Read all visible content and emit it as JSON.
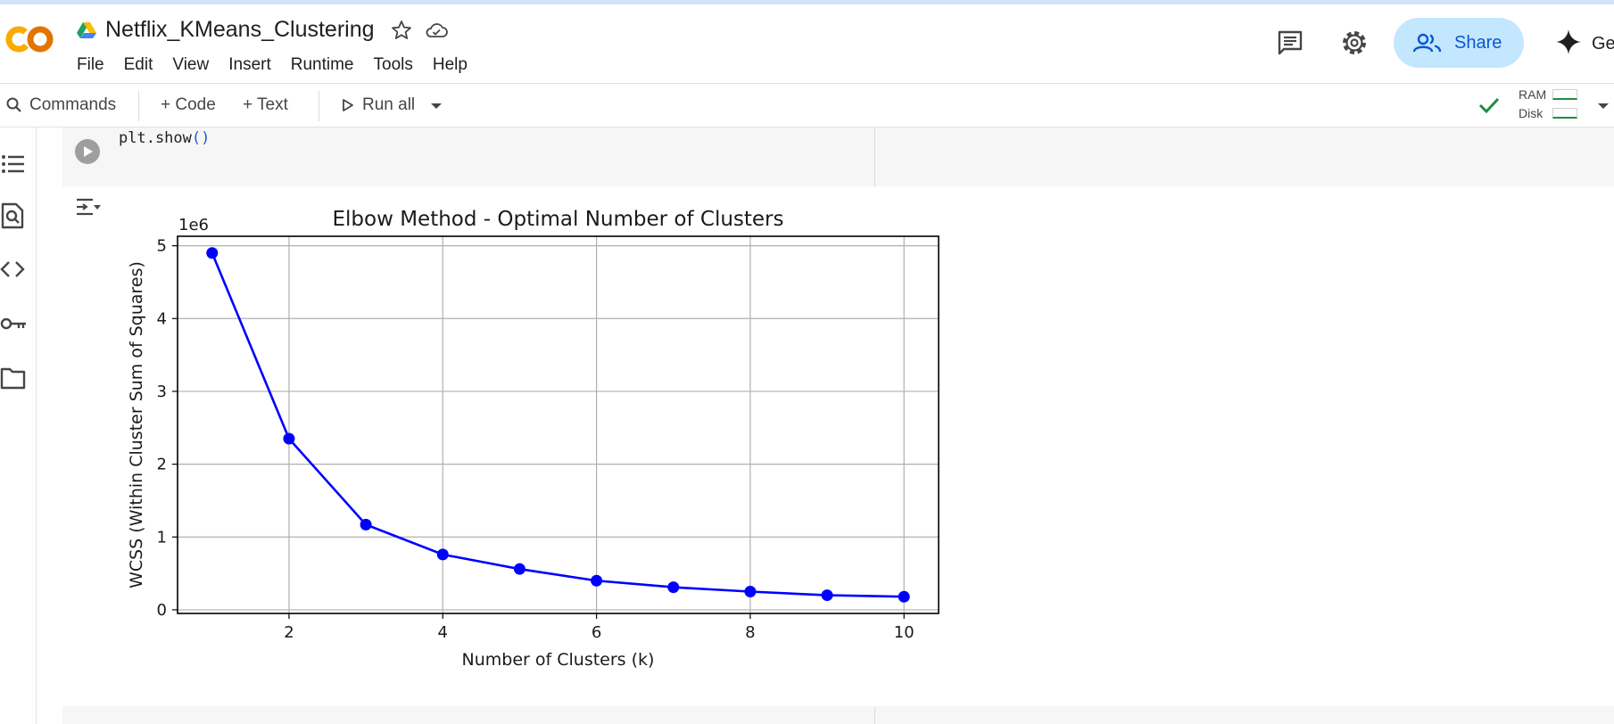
{
  "header": {
    "title": "Netflix_KMeans_Clustering",
    "share_label": "Share",
    "gemini_label": "Ge",
    "logo_colors": [
      "#f9ab00",
      "#e37400"
    ]
  },
  "menu": [
    "File",
    "Edit",
    "View",
    "Insert",
    "Runtime",
    "Tools",
    "Help"
  ],
  "toolbar": {
    "commands_label": "Commands",
    "code_label": "+ Code",
    "text_label": "+ Text",
    "run_all_label": "Run all",
    "ram_label": "RAM",
    "disk_label": "Disk",
    "connected_color": "#1e8e3e"
  },
  "rail_icons": [
    "table-of-contents-icon",
    "find-icon",
    "code-snippets-icon",
    "secrets-key-icon",
    "files-folder-icon"
  ],
  "cell": {
    "code_prefix": "plt.show",
    "code_parens": "()"
  },
  "chart_data": {
    "type": "line",
    "title": "Elbow Method - Optimal Number of Clusters",
    "xlabel": "Number of Clusters (k)",
    "ylabel": "WCSS (Within Cluster Sum of Squares)",
    "offset_label": "1e6",
    "x": [
      1,
      2,
      3,
      4,
      5,
      6,
      7,
      8,
      9,
      10
    ],
    "y": [
      4.9,
      2.35,
      1.17,
      0.76,
      0.56,
      0.4,
      0.31,
      0.25,
      0.2,
      0.18
    ],
    "xticks": [
      2,
      4,
      6,
      8,
      10
    ],
    "yticks": [
      0,
      1,
      2,
      3,
      4,
      5
    ],
    "xlim": [
      0.55,
      10.45
    ],
    "ylim": [
      -0.05,
      5.13
    ],
    "grid": true,
    "color": "#0000ff",
    "marker": "circle"
  }
}
